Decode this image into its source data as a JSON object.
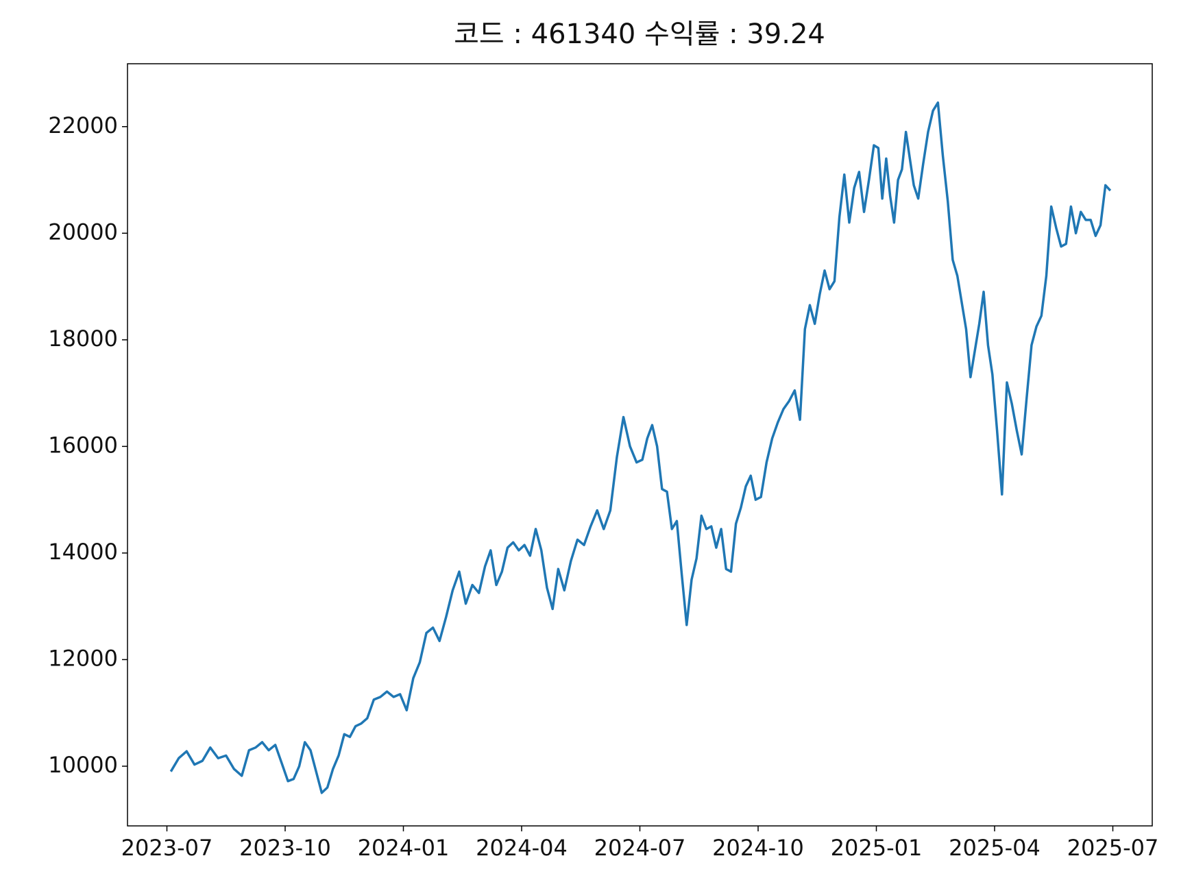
{
  "chart_data": {
    "type": "line",
    "title": "코드 : 461340 수익률 : 39.24",
    "x": [
      "2023-07",
      "2023-07",
      "2023-07",
      "2023-07",
      "2023-07",
      "2023-08",
      "2023-08",
      "2023-08",
      "2023-08",
      "2023-08",
      "2023-09",
      "2023-09",
      "2023-09",
      "2023-09",
      "2023-09",
      "2023-09",
      "2023-10",
      "2023-10",
      "2023-10",
      "2023-10",
      "2023-10",
      "2023-10",
      "2023-10",
      "2023-11",
      "2023-11",
      "2023-11",
      "2023-11",
      "2023-11",
      "2023-11",
      "2023-11",
      "2023-12",
      "2023-12",
      "2023-12",
      "2023-12",
      "2023-12",
      "2023-12",
      "2024-01",
      "2024-01",
      "2024-01",
      "2024-01",
      "2024-01",
      "2024-01",
      "2024-02",
      "2024-02",
      "2024-02",
      "2024-02",
      "2024-02",
      "2024-02",
      "2024-03",
      "2024-03",
      "2024-03",
      "2024-03",
      "2024-03",
      "2024-03",
      "2024-03",
      "2024-04",
      "2024-04",
      "2024-04",
      "2024-04",
      "2024-04",
      "2024-04",
      "2024-04",
      "2024-05",
      "2024-05",
      "2024-05",
      "2024-05",
      "2024-05",
      "2024-05",
      "2024-06",
      "2024-06",
      "2024-06",
      "2024-06",
      "2024-06",
      "2024-06",
      "2024-07",
      "2024-07",
      "2024-07",
      "2024-07",
      "2024-07",
      "2024-07",
      "2024-07",
      "2024-07",
      "2024-08",
      "2024-08",
      "2024-08",
      "2024-08",
      "2024-08",
      "2024-08",
      "2024-08",
      "2024-08",
      "2024-09",
      "2024-09",
      "2024-09",
      "2024-09",
      "2024-09",
      "2024-09",
      "2024-09",
      "2024-09",
      "2024-10",
      "2024-10",
      "2024-10",
      "2024-10",
      "2024-10",
      "2024-10",
      "2024-10",
      "2024-11",
      "2024-11",
      "2024-11",
      "2024-11",
      "2024-11",
      "2024-11",
      "2024-11",
      "2024-11",
      "2024-12",
      "2024-12",
      "2024-12",
      "2024-12",
      "2024-12",
      "2024-12",
      "2024-12",
      "2024-12",
      "2025-01",
      "2025-01",
      "2025-01",
      "2025-01",
      "2025-01",
      "2025-01",
      "2025-01",
      "2025-01",
      "2025-01",
      "2025-01",
      "2025-02",
      "2025-02",
      "2025-02",
      "2025-02",
      "2025-02",
      "2025-02",
      "2025-02",
      "2025-02",
      "2025-03",
      "2025-03",
      "2025-03",
      "2025-03",
      "2025-03",
      "2025-03",
      "2025-03",
      "2025-03",
      "2025-03",
      "2025-04",
      "2025-04",
      "2025-04",
      "2025-04",
      "2025-04",
      "2025-04",
      "2025-04",
      "2025-04",
      "2025-05",
      "2025-05",
      "2025-05",
      "2025-05",
      "2025-05",
      "2025-05",
      "2025-05",
      "2025-05",
      "2025-06",
      "2025-06",
      "2025-06",
      "2025-06",
      "2025-06",
      "2025-06",
      "2025-06",
      "2025-06"
    ],
    "series": [
      {
        "color": "#1f77b4",
        "values": [
          9900,
          10150,
          10280,
          10030,
          10100,
          10350,
          10150,
          10200,
          9950,
          9820,
          10300,
          10350,
          10450,
          10300,
          10400,
          10050,
          9720,
          9760,
          10000,
          10450,
          10300,
          9900,
          9500,
          9600,
          9950,
          10200,
          10600,
          10550,
          10750,
          10800,
          10900,
          11250,
          11300,
          11400,
          11300,
          11350,
          11050,
          11650,
          11950,
          12500,
          12600,
          12350,
          12800,
          13300,
          13650,
          13050,
          13400,
          13250,
          13750,
          14050,
          13400,
          13650,
          14100,
          14200,
          14050,
          14150,
          13950,
          14450,
          14050,
          13350,
          12950,
          13700,
          13300,
          13850,
          14250,
          14150,
          14500,
          14800,
          14450,
          14800,
          15800,
          16550,
          16000,
          15700,
          15750,
          16150,
          16400,
          16000,
          15200,
          15150,
          14450,
          14600,
          13600,
          12650,
          13500,
          13900,
          14700,
          14450,
          14500,
          14100,
          14450,
          13700,
          13650,
          14550,
          14850,
          15250,
          15450,
          15000,
          15050,
          15700,
          16150,
          16450,
          16700,
          16850,
          17050,
          16500,
          18200,
          18650,
          18300,
          18850,
          19300,
          18950,
          19100,
          20300,
          21100,
          20200,
          20850,
          21150,
          20400,
          21000,
          21650,
          21600,
          20650,
          21400,
          20700,
          20200,
          21000,
          21200,
          21900,
          21400,
          20900,
          20650,
          21300,
          21900,
          22300,
          22450,
          21450,
          20600,
          19500,
          19200,
          18700,
          18200,
          17300,
          17800,
          18300,
          18900,
          17900,
          17350,
          16300,
          15100,
          17200,
          16800,
          16300,
          15850,
          16900,
          17900,
          18250,
          18450,
          19200,
          20500,
          20100,
          19750,
          19800,
          20500,
          20000,
          20400,
          20250,
          20250,
          19950,
          20150,
          20900,
          20800
        ]
      }
    ],
    "xlim": [
      "2023-06",
      "2025-08"
    ],
    "xticks": [
      "2023-07",
      "2023-10",
      "2024-01",
      "2024-04",
      "2024-07",
      "2024-10",
      "2025-01",
      "2025-04",
      "2025-07"
    ],
    "ylim": [
      8880,
      23180
    ],
    "yticks": [
      10000,
      12000,
      14000,
      16000,
      18000,
      20000,
      22000
    ]
  }
}
